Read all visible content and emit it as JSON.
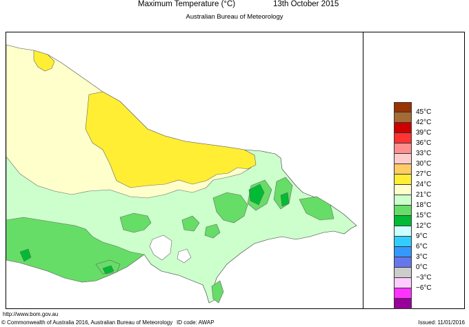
{
  "title": {
    "main": "Maximum Temperature (°C)",
    "date": "13th October 2015",
    "subtitle": "Australian Bureau of Meteorology"
  },
  "legend": [
    {
      "label": "45°C",
      "color": "#993300"
    },
    {
      "label": "42°C",
      "color": "#a66a35"
    },
    {
      "label": "39°C",
      "color": "#cc0000"
    },
    {
      "label": "36°C",
      "color": "#ff3333"
    },
    {
      "label": "33°C",
      "color": "#ff8f8f"
    },
    {
      "label": "30°C",
      "color": "#ffcccc"
    },
    {
      "label": "27°C",
      "color": "#ffcc66"
    },
    {
      "label": "24°C",
      "color": "#ffee33"
    },
    {
      "label": "21°C",
      "color": "#ffffcc"
    },
    {
      "label": "18°C",
      "color": "#ccffcc"
    },
    {
      "label": "15°C",
      "color": "#66dd66"
    },
    {
      "label": "12°C",
      "color": "#00bb33"
    },
    {
      "label": "9°C",
      "color": "#ccffff"
    },
    {
      "label": "6°C",
      "color": "#33ccff"
    },
    {
      "label": "3°C",
      "color": "#3399ff"
    },
    {
      "label": "0°C",
      "color": "#6677ee"
    },
    {
      "label": "−3°C",
      "color": "#cccccc"
    },
    {
      "label": "−6°C",
      "color": "#ffccff"
    },
    {
      "label": "",
      "color": "#ff33ff"
    },
    {
      "label": "",
      "color": "#990099"
    }
  ],
  "map_colors": {
    "background": "#ffffff",
    "zone_21_24": "#ffffcc",
    "zone_24_27": "#ffee33",
    "zone_18_21": "#ccffcc",
    "zone_15_18": "#66dd66",
    "zone_12_15": "#00bb33",
    "outline": "#666666"
  },
  "footer": {
    "url": "http://www.bom.gov.au",
    "copyright": "© Commonwealth of Australia 2016, Australian Bureau of Meteorology",
    "id_code": "ID code: AWAP",
    "issued": "Issued: 11/01/2016"
  }
}
